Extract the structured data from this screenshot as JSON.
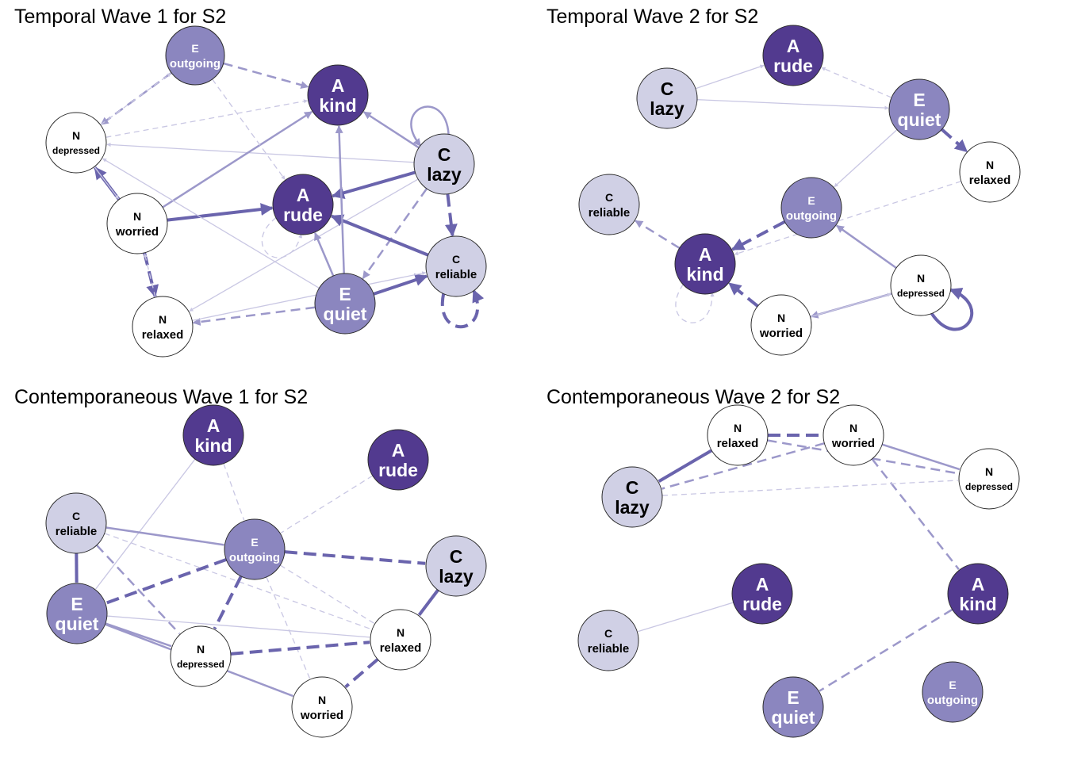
{
  "colors": {
    "A": "#523a8f",
    "E": "#8b86bf",
    "C": "#d0d0e5",
    "N": "#ffffff",
    "edge_dark": "#6a64ad",
    "edge_mid": "#9c98ca",
    "edge_light": "#c9c7e3"
  },
  "panels": [
    {
      "id": "t1",
      "title": "Temporal Wave 1 for S2",
      "nodes": [
        {
          "id": "E_outgoing",
          "group": "E",
          "letter": "E",
          "label": "outgoing"
        },
        {
          "id": "A_kind",
          "group": "A",
          "letter": "A",
          "label": "kind"
        },
        {
          "id": "N_depressed",
          "group": "N",
          "letter": "N",
          "label": "depressed"
        },
        {
          "id": "C_lazy",
          "group": "C",
          "letter": "C",
          "label": "lazy"
        },
        {
          "id": "A_rude",
          "group": "A",
          "letter": "A",
          "label": "rude"
        },
        {
          "id": "N_worried",
          "group": "N",
          "letter": "N",
          "label": "worried"
        },
        {
          "id": "C_reliable",
          "group": "C",
          "letter": "C",
          "label": "reliable"
        },
        {
          "id": "E_quiet",
          "group": "E",
          "letter": "E",
          "label": "quiet"
        },
        {
          "id": "N_relaxed",
          "group": "N",
          "letter": "N",
          "label": "relaxed"
        }
      ],
      "edges": [
        {
          "from": "E_outgoing",
          "to": "A_kind",
          "strength": 2,
          "sign": "neg"
        },
        {
          "from": "E_outgoing",
          "to": "N_depressed",
          "strength": 2,
          "sign": "neg"
        },
        {
          "from": "N_depressed",
          "to": "E_outgoing",
          "strength": 1,
          "sign": "neg"
        },
        {
          "from": "N_depressed",
          "to": "A_kind",
          "strength": 1,
          "sign": "neg"
        },
        {
          "from": "C_lazy",
          "to": "A_kind",
          "strength": 2,
          "sign": "pos"
        },
        {
          "from": "C_lazy",
          "to": "N_depressed",
          "strength": 1,
          "sign": "pos"
        },
        {
          "from": "C_lazy",
          "to": "C_lazy",
          "strength": 2,
          "sign": "pos",
          "loop": true
        },
        {
          "from": "C_lazy",
          "to": "A_rude",
          "strength": 3,
          "sign": "pos"
        },
        {
          "from": "C_lazy",
          "to": "C_reliable",
          "strength": 3,
          "sign": "neg"
        },
        {
          "from": "C_lazy",
          "to": "E_quiet",
          "strength": 2,
          "sign": "neg"
        },
        {
          "from": "C_lazy",
          "to": "N_relaxed",
          "strength": 1,
          "sign": "pos"
        },
        {
          "from": "N_worried",
          "to": "A_rude",
          "strength": 3,
          "sign": "pos"
        },
        {
          "from": "N_worried",
          "to": "A_kind",
          "strength": 2,
          "sign": "pos"
        },
        {
          "from": "N_worried",
          "to": "N_depressed",
          "strength": 3,
          "sign": "pos"
        },
        {
          "from": "N_depressed",
          "to": "N_worried",
          "strength": 1,
          "sign": "pos"
        },
        {
          "from": "N_worried",
          "to": "N_relaxed",
          "strength": 3,
          "sign": "neg"
        },
        {
          "from": "N_relaxed",
          "to": "N_worried",
          "strength": 1,
          "sign": "neg"
        },
        {
          "from": "C_reliable",
          "to": "A_rude",
          "strength": 3,
          "sign": "pos"
        },
        {
          "from": "C_reliable",
          "to": "C_reliable",
          "strength": 3,
          "sign": "neg",
          "loop": true
        },
        {
          "from": "E_quiet",
          "to": "A_kind",
          "strength": 2,
          "sign": "pos"
        },
        {
          "from": "E_quiet",
          "to": "A_rude",
          "strength": 2,
          "sign": "pos"
        },
        {
          "from": "E_quiet",
          "to": "C_reliable",
          "strength": 3,
          "sign": "pos"
        },
        {
          "from": "E_quiet",
          "to": "N_relaxed",
          "strength": 2,
          "sign": "neg"
        },
        {
          "from": "E_quiet",
          "to": "N_depressed",
          "strength": 1,
          "sign": "pos"
        },
        {
          "from": "N_relaxed",
          "to": "C_reliable",
          "strength": 1,
          "sign": "pos"
        },
        {
          "from": "A_rude",
          "to": "A_rude",
          "strength": 1,
          "sign": "neg",
          "loop": true
        },
        {
          "from": "E_outgoing",
          "to": "A_rude",
          "strength": 1,
          "sign": "neg"
        }
      ]
    },
    {
      "id": "t2",
      "title": "Temporal Wave 2 for S2",
      "nodes": [
        {
          "id": "A_rude",
          "group": "A",
          "letter": "A",
          "label": "rude"
        },
        {
          "id": "C_lazy",
          "group": "C",
          "letter": "C",
          "label": "lazy"
        },
        {
          "id": "E_quiet",
          "group": "E",
          "letter": "E",
          "label": "quiet"
        },
        {
          "id": "N_relaxed",
          "group": "N",
          "letter": "N",
          "label": "relaxed"
        },
        {
          "id": "C_reliable",
          "group": "C",
          "letter": "C",
          "label": "reliable"
        },
        {
          "id": "E_outgoing",
          "group": "E",
          "letter": "E",
          "label": "outgoing"
        },
        {
          "id": "A_kind",
          "group": "A",
          "letter": "A",
          "label": "kind"
        },
        {
          "id": "N_depressed",
          "group": "N",
          "letter": "N",
          "label": "depressed"
        },
        {
          "id": "N_worried",
          "group": "N",
          "letter": "N",
          "label": "worried"
        }
      ],
      "edges": [
        {
          "from": "C_lazy",
          "to": "A_rude",
          "strength": 1,
          "sign": "pos"
        },
        {
          "from": "C_lazy",
          "to": "E_quiet",
          "strength": 1,
          "sign": "pos"
        },
        {
          "from": "E_quiet",
          "to": "A_rude",
          "strength": 1,
          "sign": "neg"
        },
        {
          "from": "E_quiet",
          "to": "N_relaxed",
          "strength": 3,
          "sign": "neg"
        },
        {
          "from": "E_quiet",
          "to": "E_outgoing",
          "strength": 1,
          "sign": "pos"
        },
        {
          "from": "N_relaxed",
          "to": "A_kind",
          "strength": 1,
          "sign": "neg"
        },
        {
          "from": "E_outgoing",
          "to": "A_kind",
          "strength": 3,
          "sign": "neg"
        },
        {
          "from": "A_kind",
          "to": "C_reliable",
          "strength": 2,
          "sign": "neg"
        },
        {
          "from": "A_kind",
          "to": "A_kind",
          "strength": 1,
          "sign": "neg",
          "loop": true
        },
        {
          "from": "N_worried",
          "to": "A_kind",
          "strength": 3,
          "sign": "neg"
        },
        {
          "from": "N_depressed",
          "to": "E_outgoing",
          "strength": 2,
          "sign": "pos"
        },
        {
          "from": "N_depressed",
          "to": "N_worried",
          "strength": 2,
          "sign": "pos"
        },
        {
          "from": "N_worried",
          "to": "N_depressed",
          "strength": 1,
          "sign": "pos"
        },
        {
          "from": "N_depressed",
          "to": "N_depressed",
          "strength": 3,
          "sign": "pos",
          "loop": true
        }
      ]
    },
    {
      "id": "c1",
      "title": "Contemporaneous Wave 1 for S2",
      "nodes": [
        {
          "id": "A_kind",
          "group": "A",
          "letter": "A",
          "label": "kind"
        },
        {
          "id": "A_rude",
          "group": "A",
          "letter": "A",
          "label": "rude"
        },
        {
          "id": "C_reliable",
          "group": "C",
          "letter": "C",
          "label": "reliable"
        },
        {
          "id": "E_outgoing",
          "group": "E",
          "letter": "E",
          "label": "outgoing"
        },
        {
          "id": "C_lazy",
          "group": "C",
          "letter": "C",
          "label": "lazy"
        },
        {
          "id": "E_quiet",
          "group": "E",
          "letter": "E",
          "label": "quiet"
        },
        {
          "id": "N_relaxed",
          "group": "N",
          "letter": "N",
          "label": "relaxed"
        },
        {
          "id": "N_depressed",
          "group": "N",
          "letter": "N",
          "label": "depressed"
        },
        {
          "id": "N_worried",
          "group": "N",
          "letter": "N",
          "label": "worried"
        }
      ],
      "edges": [
        {
          "from": "A_kind",
          "to": "E_quiet",
          "strength": 1,
          "sign": "pos"
        },
        {
          "from": "A_kind",
          "to": "E_outgoing",
          "strength": 1,
          "sign": "neg"
        },
        {
          "from": "A_rude",
          "to": "E_outgoing",
          "strength": 1,
          "sign": "neg"
        },
        {
          "from": "C_reliable",
          "to": "E_outgoing",
          "strength": 2,
          "sign": "pos"
        },
        {
          "from": "C_reliable",
          "to": "E_quiet",
          "strength": 3,
          "sign": "pos"
        },
        {
          "from": "C_reliable",
          "to": "N_depressed",
          "strength": 2,
          "sign": "neg"
        },
        {
          "from": "C_reliable",
          "to": "N_relaxed",
          "strength": 1,
          "sign": "neg"
        },
        {
          "from": "E_outgoing",
          "to": "C_lazy",
          "strength": 3,
          "sign": "neg"
        },
        {
          "from": "E_outgoing",
          "to": "E_quiet",
          "strength": 3,
          "sign": "neg"
        },
        {
          "from": "E_outgoing",
          "to": "N_depressed",
          "strength": 3,
          "sign": "neg"
        },
        {
          "from": "E_outgoing",
          "to": "N_worried",
          "strength": 1,
          "sign": "neg"
        },
        {
          "from": "E_outgoing",
          "to": "N_relaxed",
          "strength": 1,
          "sign": "neg"
        },
        {
          "from": "C_lazy",
          "to": "N_relaxed",
          "strength": 3,
          "sign": "pos"
        },
        {
          "from": "E_quiet",
          "to": "N_relaxed",
          "strength": 1,
          "sign": "pos"
        },
        {
          "from": "E_quiet",
          "to": "N_depressed",
          "strength": 2,
          "sign": "pos"
        },
        {
          "from": "E_quiet",
          "to": "N_worried",
          "strength": 2,
          "sign": "pos"
        },
        {
          "from": "N_depressed",
          "to": "N_relaxed",
          "strength": 3,
          "sign": "neg"
        },
        {
          "from": "N_relaxed",
          "to": "N_worried",
          "strength": 3,
          "sign": "neg"
        }
      ]
    },
    {
      "id": "c2",
      "title": "Contemporaneous Wave 2 for S2",
      "nodes": [
        {
          "id": "N_relaxed",
          "group": "N",
          "letter": "N",
          "label": "relaxed"
        },
        {
          "id": "N_worried",
          "group": "N",
          "letter": "N",
          "label": "worried"
        },
        {
          "id": "N_depressed",
          "group": "N",
          "letter": "N",
          "label": "depressed"
        },
        {
          "id": "C_lazy",
          "group": "C",
          "letter": "C",
          "label": "lazy"
        },
        {
          "id": "A_rude",
          "group": "A",
          "letter": "A",
          "label": "rude"
        },
        {
          "id": "A_kind",
          "group": "A",
          "letter": "A",
          "label": "kind"
        },
        {
          "id": "C_reliable",
          "group": "C",
          "letter": "C",
          "label": "reliable"
        },
        {
          "id": "E_quiet",
          "group": "E",
          "letter": "E",
          "label": "quiet"
        },
        {
          "id": "E_outgoing",
          "group": "E",
          "letter": "E",
          "label": "outgoing"
        }
      ],
      "edges": [
        {
          "from": "N_relaxed",
          "to": "N_worried",
          "strength": 3,
          "sign": "neg"
        },
        {
          "from": "N_relaxed",
          "to": "C_lazy",
          "strength": 3,
          "sign": "pos"
        },
        {
          "from": "N_relaxed",
          "to": "N_depressed",
          "strength": 2,
          "sign": "neg"
        },
        {
          "from": "N_worried",
          "to": "C_lazy",
          "strength": 2,
          "sign": "neg"
        },
        {
          "from": "N_worried",
          "to": "N_depressed",
          "strength": 2,
          "sign": "pos"
        },
        {
          "from": "N_worried",
          "to": "A_kind",
          "strength": 2,
          "sign": "neg"
        },
        {
          "from": "C_lazy",
          "to": "N_depressed",
          "strength": 1,
          "sign": "neg"
        },
        {
          "from": "A_rude",
          "to": "C_reliable",
          "strength": 1,
          "sign": "pos"
        },
        {
          "from": "A_kind",
          "to": "E_quiet",
          "strength": 2,
          "sign": "neg"
        }
      ]
    }
  ]
}
